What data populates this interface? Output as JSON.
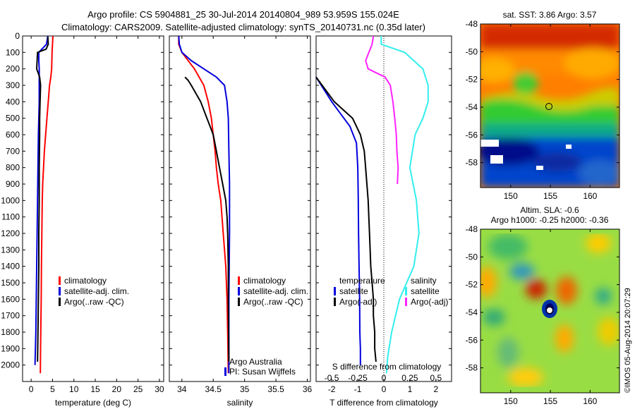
{
  "header": {
    "line1": "Argo profile: CS 5904881_25 30-Jul-2014 20140804_989 53.959S 155.024E",
    "line2": "Climatology: CARS2009. Satellite-adjusted climatology: synTS_20140731.nc (0.35d later)"
  },
  "colors": {
    "climatology": "#ff0000",
    "satellite": "#0000dd",
    "argo": "#000000",
    "sal_satellite": "#33eeee",
    "sal_argo": "#ff22ff"
  },
  "chart_data": [
    {
      "type": "line",
      "panel": "temperature",
      "xlabel": "temperature (deg C)",
      "ylabel": "",
      "xlim": [
        -2,
        31
      ],
      "ylim": [
        2100,
        0
      ],
      "xticks": [
        0,
        5,
        10,
        15,
        20,
        25,
        30
      ],
      "yticks": [
        0,
        100,
        200,
        300,
        400,
        500,
        600,
        700,
        800,
        900,
        1000,
        1100,
        1200,
        1300,
        1400,
        1500,
        1600,
        1700,
        1800,
        1900,
        2000
      ],
      "legend": {
        "placement": "center-right",
        "entries": [
          "climatology",
          "satellite-adj. clim.",
          "Argo(..raw -QC)"
        ]
      },
      "series": [
        {
          "name": "climatology",
          "color": "#ff0000",
          "x": [
            5.1,
            5.0,
            4.9,
            4.8,
            4.6,
            4.3,
            4.0,
            3.7,
            3.4,
            3.1,
            2.9,
            2.7,
            2.6,
            2.5,
            2.4,
            2.35,
            2.3,
            2.25,
            2.2,
            2.15
          ],
          "y": [
            0,
            50,
            100,
            200,
            250,
            300,
            400,
            500,
            600,
            700,
            800,
            900,
            1000,
            1200,
            1400,
            1600,
            1700,
            1800,
            1900,
            2050
          ]
        },
        {
          "name": "satellite-adj. clim.",
          "color": "#0000dd",
          "x": [
            3.9,
            3.6,
            1.8,
            1.8,
            1.9,
            1.9,
            1.9,
            1.8,
            1.7,
            1.6,
            1.5,
            1.4,
            1.3,
            1.2,
            1.1,
            1.0,
            0.9
          ],
          "y": [
            0,
            50,
            100,
            150,
            200,
            300,
            400,
            500,
            600,
            800,
            1000,
            1200,
            1400,
            1600,
            1800,
            1900,
            2000
          ]
        },
        {
          "name": "Argo(..raw -QC)",
          "color": "#000000",
          "x": [
            3.9,
            4.0,
            3.5,
            1.5,
            1.3,
            2.0,
            2.2,
            2.1,
            2.0,
            2.0,
            1.9,
            1.9,
            1.8,
            1.8,
            1.7,
            1.6,
            1.5
          ],
          "y": [
            5,
            50,
            80,
            100,
            200,
            250,
            300,
            400,
            500,
            600,
            800,
            1000,
            1200,
            1400,
            1600,
            1800,
            1980
          ]
        }
      ]
    },
    {
      "type": "line",
      "panel": "salinity",
      "xlabel": "salinity",
      "ylabel": "",
      "xlim": [
        33.8,
        36.05
      ],
      "ylim": [
        2100,
        0
      ],
      "xticks": [
        34,
        34.5,
        35,
        35.5,
        36
      ],
      "legend": {
        "placement": "center-right",
        "entries": [
          "climatology",
          "satellite-adj. clim.",
          "Argo(..raw -QC)"
        ]
      },
      "annotations": [
        "Argo Australia",
        "PI: Susan Wijffels"
      ],
      "series": [
        {
          "name": "climatology",
          "color": "#ff0000",
          "x": [
            33.95,
            33.95,
            34.0,
            34.2,
            34.35,
            34.42,
            34.47,
            34.5,
            34.53,
            34.55,
            34.58,
            34.62,
            34.66,
            34.7,
            34.72,
            34.73,
            34.74
          ],
          "y": [
            0,
            50,
            100,
            200,
            300,
            400,
            500,
            600,
            700,
            800,
            900,
            1000,
            1200,
            1400,
            1600,
            1800,
            2050
          ]
        },
        {
          "name": "satellite-adj. clim.",
          "color": "#0000dd",
          "x": [
            33.95,
            33.96,
            34.0,
            34.15,
            34.35,
            34.55,
            34.68,
            34.72,
            34.74,
            34.75,
            34.76,
            34.76,
            34.75,
            34.75
          ],
          "y": [
            0,
            50,
            100,
            150,
            200,
            250,
            300,
            400,
            500,
            700,
            900,
            1200,
            1600,
            2050
          ]
        },
        {
          "name": "Argo(..raw -QC)",
          "color": "#000000",
          "x": [
            34.05,
            34.1,
            34.15,
            34.3,
            34.4,
            34.45,
            34.5,
            34.55,
            34.6,
            34.65,
            34.7,
            34.72,
            34.73,
            34.74,
            34.74,
            34.75
          ],
          "y": [
            250,
            270,
            300,
            400,
            500,
            550,
            600,
            700,
            800,
            900,
            1000,
            1100,
            1200,
            1400,
            1600,
            1980
          ]
        }
      ]
    },
    {
      "type": "line",
      "panel": "difference",
      "xlabel": "T difference from climatology",
      "x2label": "S difference from climatology",
      "xlim": [
        -2.6,
        2.6
      ],
      "ylim": [
        2100,
        0
      ],
      "xticks": [
        "-2",
        "-1",
        "0",
        "1",
        "2"
      ],
      "x2ticks": [
        "-0.5",
        "-0.25",
        "0",
        "0.25",
        "0.5"
      ],
      "legend": {
        "placement": "center",
        "entries": [
          "temperature",
          "satellite",
          "Argo(-adj)",
          "salinity",
          "satellite",
          "Argo(-adj)"
        ]
      },
      "series": [
        {
          "name": "temperature satellite",
          "color": "#0000dd",
          "x": [
            -2.6,
            -2.0,
            -1.3,
            -1.05,
            -1.0,
            -0.98,
            -0.97,
            -0.95,
            -0.93,
            -0.92,
            -0.9,
            -0.9
          ],
          "y": [
            250,
            400,
            550,
            650,
            800,
            1000,
            1200,
            1400,
            1600,
            1800,
            1900,
            2000
          ]
        },
        {
          "name": "temperature Argo(-adj)",
          "color": "#000000",
          "x": [
            -2.6,
            -1.9,
            -1.2,
            -0.9,
            -0.75,
            -0.7,
            -0.6,
            -0.55,
            -0.5,
            -0.45,
            -0.4,
            -0.4,
            -0.35,
            -0.35,
            -0.3
          ],
          "y": [
            250,
            400,
            500,
            600,
            700,
            800,
            1000,
            1200,
            1400,
            1500,
            1600,
            1700,
            1800,
            1900,
            1980
          ]
        },
        {
          "name": "salinity satellite",
          "color": "#33eeee",
          "x": [
            -0.1,
            -0.1,
            0.8,
            1.5,
            1.7,
            1.7,
            1.5,
            1.2,
            1.0,
            1.25,
            1.35,
            1.15,
            0.6,
            0.3,
            0.15,
            0.1
          ],
          "y": [
            0,
            50,
            100,
            200,
            300,
            400,
            500,
            600,
            800,
            1000,
            1200,
            1400,
            1600,
            1800,
            1950,
            2050
          ]
        },
        {
          "name": "salinity Argo(-adj)",
          "color": "#ff22ff",
          "x": [
            -0.4,
            -0.45,
            -0.7,
            -0.6,
            0.05,
            0.25,
            0.35,
            0.42,
            0.48,
            0.5,
            0.55,
            0.52
          ],
          "y": [
            0,
            50,
            150,
            200,
            250,
            300,
            400,
            500,
            600,
            700,
            800,
            900
          ]
        }
      ]
    },
    {
      "type": "heatmap",
      "panel": "sst-map",
      "title": "sat. SST: 3.86 Argo: 3.57",
      "xticks": [
        150,
        155,
        160
      ],
      "yticks": [
        -48,
        -50,
        -52,
        -54,
        -56,
        -58
      ]
    },
    {
      "type": "heatmap",
      "panel": "sla-map",
      "title": "Altim. SLA: -0.6",
      "subtitle": "Argo h1000: -0.25 h2000: -0.36",
      "xticks": [
        150,
        155,
        160
      ],
      "yticks": [
        -48,
        -50,
        -52,
        -54,
        -56,
        -58
      ]
    }
  ],
  "side_label": "©IMOS 05-Aug-2014 20:07:29"
}
